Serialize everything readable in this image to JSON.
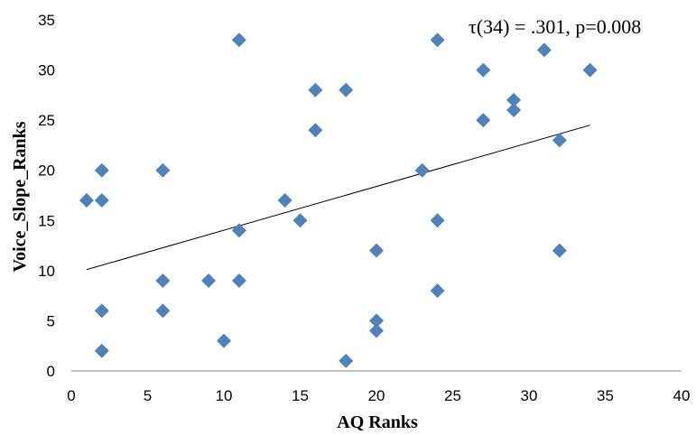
{
  "chart_data": {
    "type": "scatter",
    "title": "",
    "xlabel": "AQ Ranks",
    "ylabel": "Voice_Slope_Ranks",
    "xlim": [
      0,
      40
    ],
    "ylim": [
      0,
      35
    ],
    "xticks": [
      "0",
      "5",
      "10",
      "15",
      "20",
      "25",
      "30",
      "35",
      "40"
    ],
    "yticks": [
      "0",
      "5",
      "10",
      "15",
      "20",
      "25",
      "30",
      "35"
    ],
    "grid": false,
    "legend": "none",
    "annotation": "τ(34) = .301,  p=0.008",
    "marker_color": "#4f81bd",
    "trendline": {
      "x": [
        1,
        34
      ],
      "y": [
        10.1,
        24.5
      ]
    },
    "points": [
      {
        "x": 1,
        "y": 17
      },
      {
        "x": 2,
        "y": 20
      },
      {
        "x": 2,
        "y": 17
      },
      {
        "x": 2,
        "y": 6
      },
      {
        "x": 2,
        "y": 2
      },
      {
        "x": 6,
        "y": 20
      },
      {
        "x": 6,
        "y": 9
      },
      {
        "x": 6,
        "y": 6
      },
      {
        "x": 9,
        "y": 9
      },
      {
        "x": 10,
        "y": 3
      },
      {
        "x": 11,
        "y": 33
      },
      {
        "x": 11,
        "y": 14
      },
      {
        "x": 11,
        "y": 9
      },
      {
        "x": 14,
        "y": 17
      },
      {
        "x": 15,
        "y": 15
      },
      {
        "x": 16,
        "y": 28
      },
      {
        "x": 16,
        "y": 24
      },
      {
        "x": 18,
        "y": 28
      },
      {
        "x": 18,
        "y": 1
      },
      {
        "x": 20,
        "y": 12
      },
      {
        "x": 20,
        "y": 5
      },
      {
        "x": 20,
        "y": 4
      },
      {
        "x": 23,
        "y": 20
      },
      {
        "x": 24,
        "y": 33
      },
      {
        "x": 24,
        "y": 15
      },
      {
        "x": 24,
        "y": 8
      },
      {
        "x": 27,
        "y": 30
      },
      {
        "x": 27,
        "y": 25
      },
      {
        "x": 29,
        "y": 27
      },
      {
        "x": 29,
        "y": 26
      },
      {
        "x": 31,
        "y": 32
      },
      {
        "x": 32,
        "y": 23
      },
      {
        "x": 32,
        "y": 12
      },
      {
        "x": 34,
        "y": 30
      }
    ]
  }
}
